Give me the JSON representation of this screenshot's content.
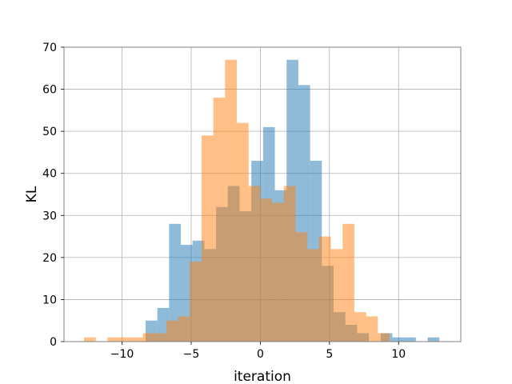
{
  "chart_data": {
    "type": "bar",
    "title": "",
    "xlabel": "iteration",
    "ylabel": "KL",
    "xlim": [
      -14.2,
      14.5
    ],
    "ylim": [
      0,
      70
    ],
    "xticks": [
      -10,
      -5,
      0,
      5,
      10
    ],
    "yticks": [
      0,
      10,
      20,
      30,
      40,
      50,
      60,
      70
    ],
    "xtick_labels": [
      "−10",
      "−5",
      "0",
      "5",
      "10"
    ],
    "ytick_labels": [
      "0",
      "10",
      "20",
      "30",
      "40",
      "50",
      "60",
      "70"
    ],
    "grid": true,
    "legend": false,
    "colors": {
      "series1": "#1f77b4",
      "series2": "#ff7f0e",
      "grid": "#b0b0b0",
      "spine": "#808080"
    },
    "opacity": 0.5,
    "series": [
      {
        "bins": [
          [
            -8.3,
            -7.45,
            5
          ],
          [
            -7.45,
            -6.6,
            8
          ],
          [
            -6.6,
            -5.75,
            28
          ],
          [
            -5.75,
            -4.9,
            23
          ],
          [
            -4.9,
            -4.05,
            24
          ],
          [
            -4.05,
            -3.2,
            22
          ],
          [
            -3.2,
            -2.35,
            32
          ],
          [
            -2.35,
            -1.5,
            37
          ],
          [
            -1.5,
            -0.65,
            31
          ],
          [
            -0.65,
            0.2,
            43
          ],
          [
            0.2,
            1.05,
            51
          ],
          [
            1.05,
            1.9,
            36
          ],
          [
            1.9,
            2.75,
            67
          ],
          [
            2.75,
            3.6,
            61
          ],
          [
            3.6,
            4.45,
            43
          ],
          [
            4.45,
            5.3,
            18
          ],
          [
            5.3,
            6.15,
            7
          ],
          [
            6.15,
            7.0,
            4
          ],
          [
            7.0,
            7.85,
            2
          ],
          [
            7.85,
            8.7,
            0
          ],
          [
            8.7,
            9.55,
            2
          ],
          [
            9.55,
            10.4,
            1
          ],
          [
            10.4,
            11.25,
            1
          ],
          [
            11.25,
            12.1,
            0
          ],
          [
            12.1,
            12.95,
            1
          ]
        ]
      },
      {
        "bins": [
          [
            -12.75,
            -11.9,
            1
          ],
          [
            -11.9,
            -11.05,
            0
          ],
          [
            -11.05,
            -10.2,
            1
          ],
          [
            -10.2,
            -9.35,
            1
          ],
          [
            -9.35,
            -8.5,
            1
          ],
          [
            -8.5,
            -7.65,
            2
          ],
          [
            -7.65,
            -6.8,
            2
          ],
          [
            -6.8,
            -5.95,
            5
          ],
          [
            -5.95,
            -5.1,
            6
          ],
          [
            -5.1,
            -4.25,
            19
          ],
          [
            -4.25,
            -3.4,
            49
          ],
          [
            -3.4,
            -2.55,
            58
          ],
          [
            -2.55,
            -1.7,
            67
          ],
          [
            -1.7,
            -0.85,
            52
          ],
          [
            -0.85,
            0.0,
            37
          ],
          [
            0.0,
            0.85,
            34
          ],
          [
            0.85,
            1.7,
            33
          ],
          [
            1.7,
            2.55,
            37
          ],
          [
            2.55,
            3.4,
            26
          ],
          [
            3.4,
            4.25,
            22
          ],
          [
            4.25,
            5.1,
            25
          ],
          [
            5.1,
            5.95,
            22
          ],
          [
            5.95,
            6.8,
            28
          ],
          [
            6.8,
            7.65,
            7
          ],
          [
            7.65,
            8.5,
            6
          ],
          [
            8.5,
            9.35,
            2
          ]
        ]
      }
    ]
  }
}
